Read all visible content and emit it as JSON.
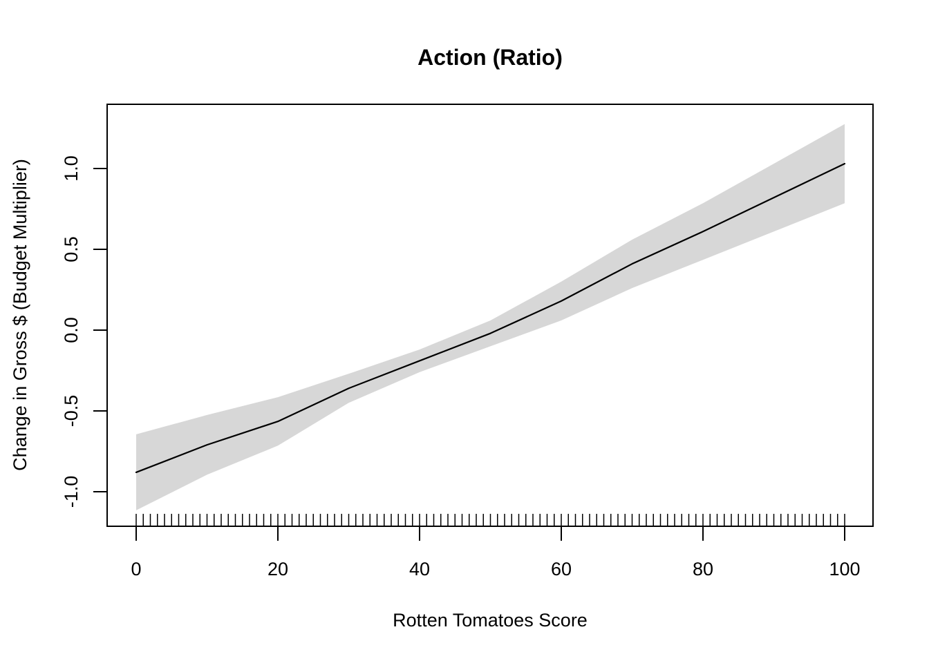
{
  "chart_data": {
    "type": "line",
    "title": "Action (Ratio)",
    "xlabel": "Rotten Tomatoes Score",
    "ylabel": "Change in Gross $ (Budget Multiplier)",
    "xlim": [
      -4,
      104
    ],
    "ylim": [
      -1.21,
      1.4
    ],
    "grid": false,
    "legend": false,
    "x_tick_values": [
      0,
      20,
      40,
      60,
      80,
      100
    ],
    "x_tick_labels": [
      "0",
      "20",
      "40",
      "60",
      "80",
      "100"
    ],
    "y_tick_values": [
      -1.0,
      -0.5,
      0.0,
      0.5,
      1.0
    ],
    "y_tick_labels": [
      "-1.0",
      "-0.5",
      "0.0",
      "0.5",
      "1.0"
    ],
    "x": [
      0,
      10,
      20,
      30,
      40,
      50,
      60,
      70,
      80,
      90,
      100
    ],
    "series": [
      {
        "name": "fitted",
        "values": [
          -0.88,
          -0.71,
          -0.565,
          -0.36,
          -0.19,
          -0.02,
          0.18,
          0.41,
          0.61,
          0.82,
          1.03
        ]
      },
      {
        "name": "ci_upper",
        "values": [
          -0.645,
          -0.525,
          -0.415,
          -0.27,
          -0.12,
          0.06,
          0.3,
          0.56,
          0.785,
          1.03,
          1.275
        ]
      },
      {
        "name": "ci_lower",
        "values": [
          -1.115,
          -0.895,
          -0.715,
          -0.45,
          -0.26,
          -0.1,
          0.06,
          0.26,
          0.435,
          0.61,
          0.785
        ]
      }
    ],
    "rug": {
      "start": 0,
      "end": 100,
      "step": 1
    },
    "colors": {
      "fit_line": "#000000",
      "confidence_band": "#d7d7d7",
      "axis": "#000000",
      "background": "#ffffff"
    }
  }
}
